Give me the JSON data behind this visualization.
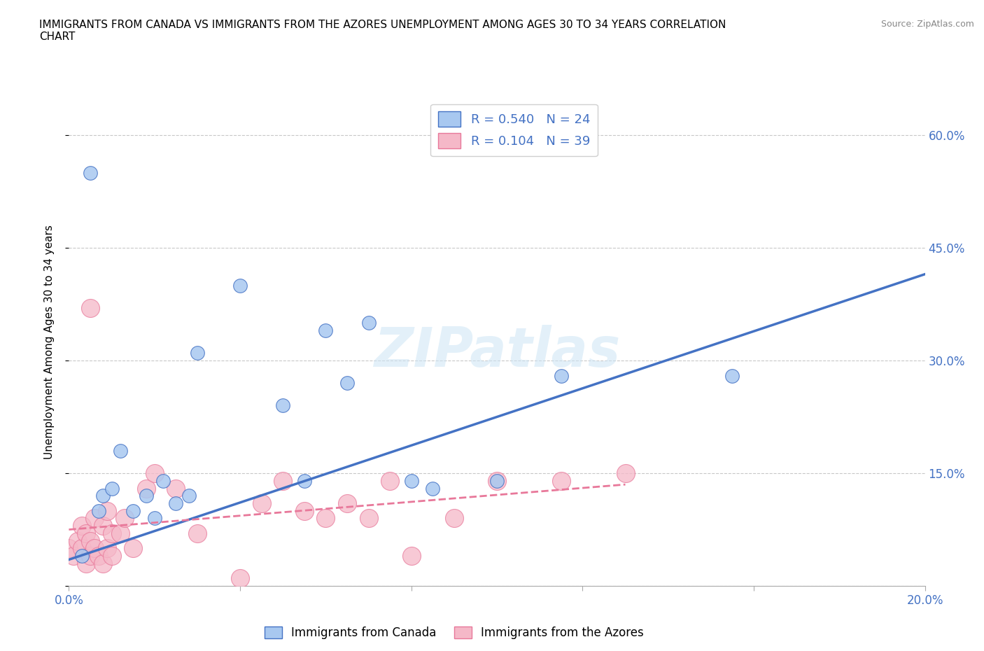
{
  "title": "IMMIGRANTS FROM CANADA VS IMMIGRANTS FROM THE AZORES UNEMPLOYMENT AMONG AGES 30 TO 34 YEARS CORRELATION\nCHART",
  "source": "Source: ZipAtlas.com",
  "xlabel_label": "Immigrants from Canada",
  "ylabel_label": "Unemployment Among Ages 30 to 34 years",
  "xlim": [
    0.0,
    0.2
  ],
  "ylim": [
    0.0,
    0.65
  ],
  "xticks": [
    0.0,
    0.04,
    0.08,
    0.12,
    0.16,
    0.2
  ],
  "yticks": [
    0.0,
    0.15,
    0.3,
    0.45,
    0.6
  ],
  "canada_color": "#a8c8f0",
  "azores_color": "#f5b8c8",
  "canada_line_color": "#4472c4",
  "azores_line_color": "#e8789a",
  "R_canada": 0.54,
  "N_canada": 24,
  "R_azores": 0.104,
  "N_azores": 39,
  "canada_scatter_x": [
    0.003,
    0.005,
    0.007,
    0.008,
    0.01,
    0.012,
    0.015,
    0.018,
    0.02,
    0.022,
    0.025,
    0.028,
    0.03,
    0.04,
    0.05,
    0.055,
    0.06,
    0.065,
    0.07,
    0.08,
    0.085,
    0.1,
    0.115,
    0.155
  ],
  "canada_scatter_y": [
    0.04,
    0.55,
    0.1,
    0.12,
    0.13,
    0.18,
    0.1,
    0.12,
    0.09,
    0.14,
    0.11,
    0.12,
    0.31,
    0.4,
    0.24,
    0.14,
    0.34,
    0.27,
    0.35,
    0.14,
    0.13,
    0.14,
    0.28,
    0.28
  ],
  "azores_scatter_x": [
    0.0,
    0.001,
    0.002,
    0.003,
    0.003,
    0.004,
    0.004,
    0.005,
    0.005,
    0.005,
    0.006,
    0.006,
    0.007,
    0.008,
    0.008,
    0.009,
    0.009,
    0.01,
    0.01,
    0.012,
    0.013,
    0.015,
    0.018,
    0.02,
    0.025,
    0.03,
    0.04,
    0.045,
    0.05,
    0.055,
    0.06,
    0.065,
    0.07,
    0.075,
    0.08,
    0.09,
    0.1,
    0.115,
    0.13
  ],
  "azores_scatter_y": [
    0.05,
    0.04,
    0.06,
    0.05,
    0.08,
    0.03,
    0.07,
    0.04,
    0.06,
    0.37,
    0.05,
    0.09,
    0.04,
    0.03,
    0.08,
    0.05,
    0.1,
    0.04,
    0.07,
    0.07,
    0.09,
    0.05,
    0.13,
    0.15,
    0.13,
    0.07,
    0.01,
    0.11,
    0.14,
    0.1,
    0.09,
    0.11,
    0.09,
    0.14,
    0.04,
    0.09,
    0.14,
    0.14,
    0.15
  ],
  "canada_trend_x": [
    0.0,
    0.2
  ],
  "canada_trend_y": [
    0.035,
    0.415
  ],
  "azores_trend_x": [
    0.0,
    0.13
  ],
  "azores_trend_y": [
    0.075,
    0.135
  ]
}
